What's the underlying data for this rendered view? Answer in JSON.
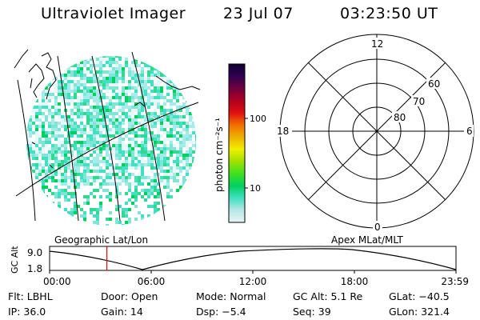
{
  "header": {
    "title": "Ultraviolet Imager",
    "date": "23 Jul 07",
    "time": "03:23:50 UT"
  },
  "colorbar": {
    "unit_label": "photon cm⁻²s⁻¹",
    "tick_100": "100",
    "tick_10": "10",
    "stops": [
      "#e8f4f4",
      "#b8e6e6",
      "#40e0c0",
      "#00d060",
      "#40e020",
      "#a0e000",
      "#f0f000",
      "#f0b000",
      "#f07000",
      "#e01010",
      "#b00020",
      "#700040",
      "#300050",
      "#100030"
    ]
  },
  "polar": {
    "mlt_top": "12",
    "mlt_left": "18",
    "mlt_right": "6",
    "mlt_bottom": "0",
    "lat_60": "60",
    "lat_70": "70",
    "lat_80": "80"
  },
  "labels": {
    "geo": "Geographic Lat/Lon",
    "apex": "Apex MLat/MLT"
  },
  "altitude_plot": {
    "axis_label": "GC Alt",
    "ymax": "9.0",
    "ymin": "1.8",
    "x_ticks": [
      "00:00",
      "06:00",
      "12:00",
      "18:00",
      "23:59"
    ],
    "current_time_fraction": 0.141
  },
  "info": {
    "flt": "Flt: LBHL",
    "door": "Door: Open",
    "mode": "Mode: Normal",
    "gcalt": "GC Alt: 5.1 Re",
    "glat": "GLat: −40.5",
    "ip": "IP: 36.0",
    "gain": "Gain: 14",
    "dsp": "Dsp:    −5.4",
    "seq": "Seq: 39",
    "glon": "GLon: 321.4"
  }
}
